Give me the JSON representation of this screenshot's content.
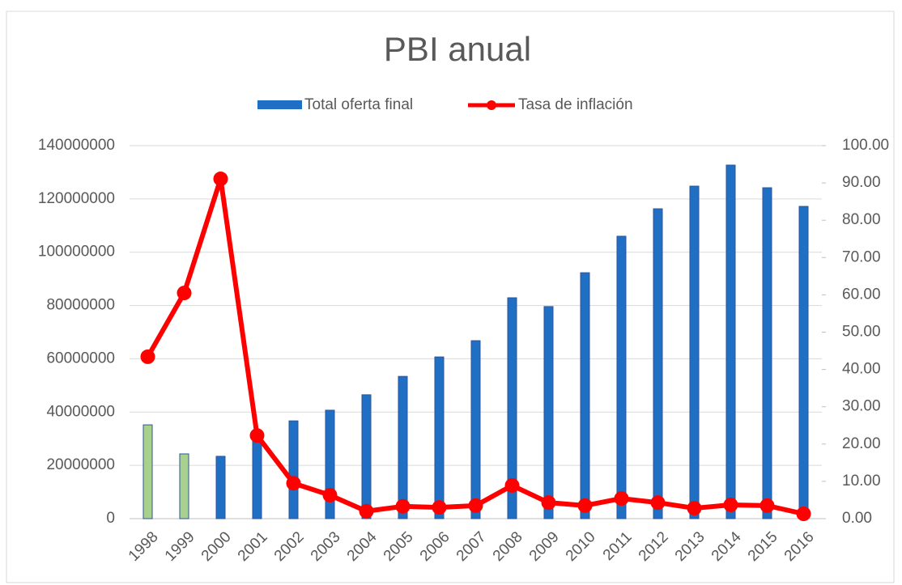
{
  "chart_data": {
    "type": "bar_line",
    "title": "PBI anual",
    "categories": [
      "1998",
      "1999",
      "2000",
      "2001",
      "2002",
      "2003",
      "2004",
      "2005",
      "2006",
      "2007",
      "2008",
      "2009",
      "2010",
      "2011",
      "2012",
      "2013",
      "2014",
      "2015",
      "2016"
    ],
    "series": [
      {
        "name": "Total oferta final",
        "type": "bar",
        "color": "#1f6fc5",
        "colors": [
          "#a9d18e",
          "#a9d18e",
          "#1f6fc5",
          "#1f6fc5",
          "#1f6fc5",
          "#1f6fc5",
          "#1f6fc5",
          "#1f6fc5",
          "#1f6fc5",
          "#1f6fc5",
          "#1f6fc5",
          "#1f6fc5",
          "#1f6fc5",
          "#1f6fc5",
          "#1f6fc5",
          "#1f6fc5",
          "#1f6fc5",
          "#1f6fc5",
          "#1f6fc5"
        ],
        "values": [
          35200000,
          24300000,
          23400000,
          30000000,
          36700000,
          40700000,
          46500000,
          53400000,
          60700000,
          66800000,
          82900000,
          79600000,
          92300000,
          106000000,
          116300000,
          124800000,
          132700000,
          124200000,
          117200000
        ]
      },
      {
        "name": "Tasa de inflación",
        "type": "line",
        "axis": "y2",
        "color": "#ff0000",
        "values": [
          43.4,
          60.5,
          91.1,
          22.3,
          9.5,
          6.3,
          2.0,
          3.3,
          3.0,
          3.5,
          8.9,
          4.3,
          3.5,
          5.4,
          4.3,
          2.8,
          3.7,
          3.5,
          1.3
        ]
      }
    ],
    "ylim": [
      0,
      140000000
    ],
    "yticks": [
      0,
      20000000,
      40000000,
      60000000,
      80000000,
      100000000,
      120000000,
      140000000
    ],
    "y2lim": [
      0,
      100
    ],
    "y2ticks": [
      {
        "value": 0,
        "label": "0.00"
      },
      {
        "value": 10,
        "label": "10.00"
      },
      {
        "value": 20,
        "label": "20.00"
      },
      {
        "value": 30,
        "label": "30.00"
      },
      {
        "value": 40,
        "label": "40.00"
      },
      {
        "value": 50,
        "label": "50.00"
      },
      {
        "value": 60,
        "label": "60.00"
      },
      {
        "value": 70,
        "label": "70.00"
      },
      {
        "value": 80,
        "label": "80.00"
      },
      {
        "value": 90,
        "label": "90.00"
      },
      {
        "value": 100,
        "label": "100.00"
      }
    ],
    "grid": true,
    "legend": "top"
  }
}
